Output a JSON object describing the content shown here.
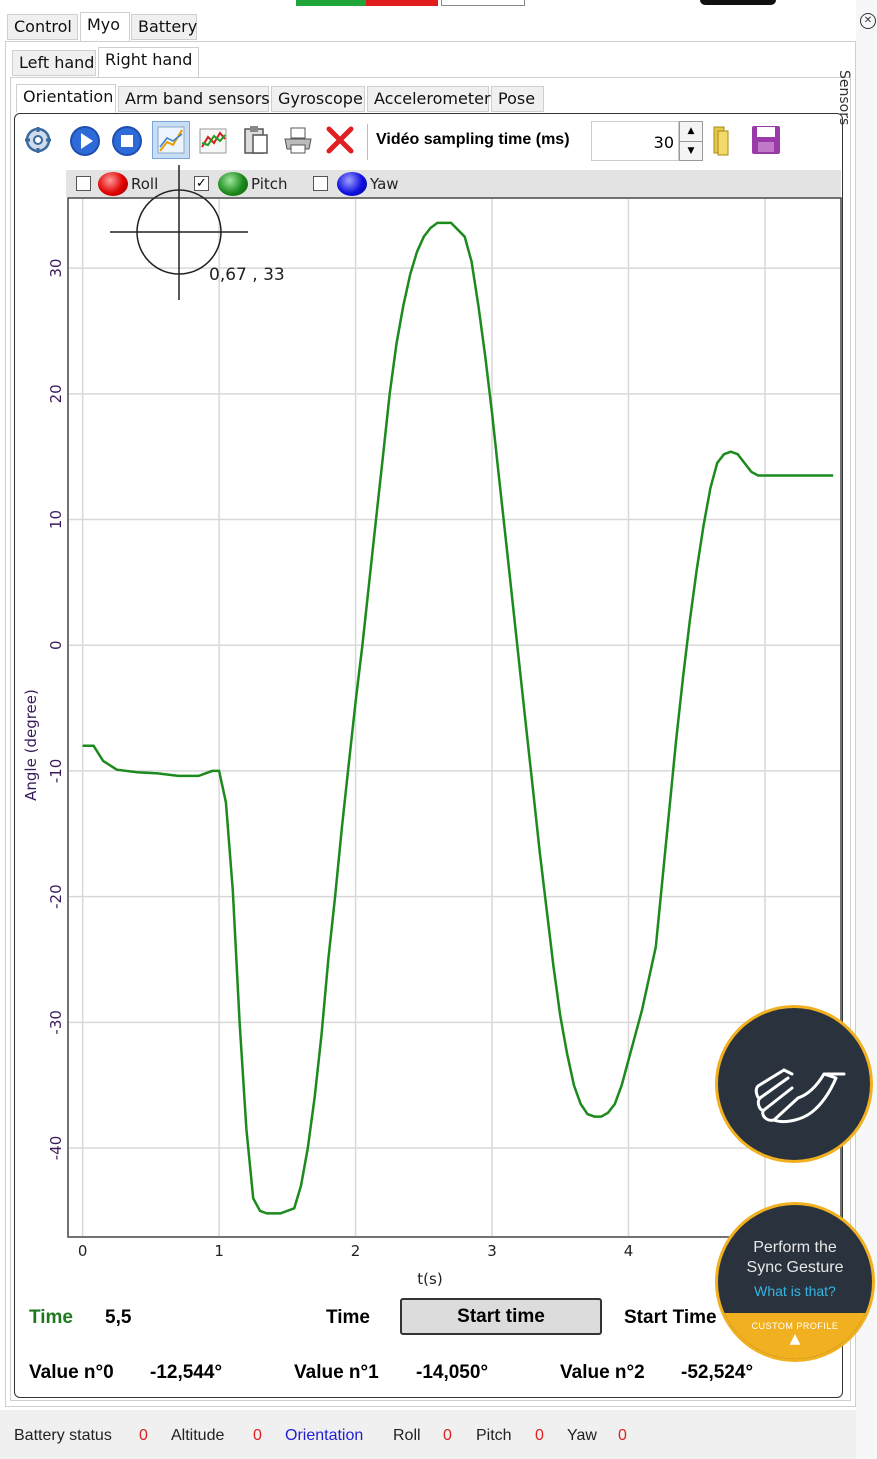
{
  "tabs_top": [
    {
      "label": "Control",
      "selected": false
    },
    {
      "label": "Myo",
      "selected": true
    },
    {
      "label": "Battery",
      "selected": false
    }
  ],
  "tabs_hand": [
    {
      "label": "Left hand",
      "selected": false
    },
    {
      "label": "Right hand",
      "selected": true
    }
  ],
  "tabs_sensor": [
    {
      "label": "Orientation",
      "selected": true
    },
    {
      "label": "Arm band sensors",
      "selected": false
    },
    {
      "label": "Gyroscope",
      "selected": false
    },
    {
      "label": "Accelerometer",
      "selected": false
    },
    {
      "label": "Pose",
      "selected": false
    }
  ],
  "toolbar": {
    "icons": [
      "settings-icon",
      "play-icon",
      "stop-icon",
      "chart-zoom-icon",
      "chart-line-icon",
      "clipboard-icon",
      "print-icon",
      "delete-icon"
    ],
    "sampling_label": "Vidéo sampling time (ms)",
    "sampling_value": "30"
  },
  "legend": [
    {
      "label": "Roll",
      "checked": false,
      "color": "#e00000"
    },
    {
      "label": "Pitch",
      "checked": true,
      "color": "#1c8a1c"
    },
    {
      "label": "Yaw",
      "checked": false,
      "color": "#1010e0"
    }
  ],
  "cursor_readout": "0,67 , 33",
  "chart_data": {
    "type": "line",
    "title": "",
    "xlabel": "t(s)",
    "ylabel": "Angle (degree)",
    "xlim": [
      -0.1,
      5.55
    ],
    "ylim": [
      -47,
      35.5
    ],
    "xticks": [
      0,
      1,
      2,
      3,
      4,
      5
    ],
    "yticks": [
      -40,
      -30,
      -20,
      -10,
      0,
      10,
      20,
      30
    ],
    "grid": true,
    "series": [
      {
        "name": "Pitch",
        "color": "#1c8a1c",
        "x": [
          0,
          0.08,
          0.15,
          0.25,
          0.4,
          0.55,
          0.7,
          0.85,
          0.95,
          1.0,
          1.05,
          1.1,
          1.15,
          1.2,
          1.25,
          1.3,
          1.35,
          1.45,
          1.55,
          1.6,
          1.65,
          1.7,
          1.75,
          1.8,
          1.85,
          1.9,
          1.95,
          2.0,
          2.05,
          2.1,
          2.15,
          2.2,
          2.25,
          2.3,
          2.35,
          2.4,
          2.45,
          2.5,
          2.55,
          2.6,
          2.7,
          2.8,
          2.85,
          2.9,
          2.95,
          3.0,
          3.05,
          3.1,
          3.15,
          3.2,
          3.25,
          3.3,
          3.35,
          3.4,
          3.45,
          3.5,
          3.55,
          3.6,
          3.65,
          3.7,
          3.75,
          3.8,
          3.85,
          3.9,
          3.95,
          4.0,
          4.1,
          4.2,
          4.25,
          4.3,
          4.35,
          4.4,
          4.45,
          4.5,
          4.55,
          4.6,
          4.65,
          4.7,
          4.75,
          4.8,
          4.85,
          4.9,
          4.95,
          5.0,
          5.05,
          5.1,
          5.15,
          5.2,
          5.25,
          5.3,
          5.35,
          5.4,
          5.45,
          5.5
        ],
        "values": [
          -8,
          -8,
          -9.2,
          -9.9,
          -10.1,
          -10.2,
          -10.4,
          -10.4,
          -10,
          -10,
          -12.5,
          -19.5,
          -30,
          -38.5,
          -44,
          -45,
          -45.2,
          -45.2,
          -44.8,
          -43,
          -40,
          -36,
          -31,
          -25,
          -20,
          -14.5,
          -9.5,
          -4.5,
          0,
          5,
          10,
          15,
          20,
          24,
          27,
          29.5,
          31.3,
          32.5,
          33.2,
          33.6,
          33.6,
          32.5,
          30.5,
          27,
          23,
          18.5,
          13.5,
          8.5,
          3.5,
          -1.5,
          -6.5,
          -11.5,
          -16.5,
          -21,
          -25.5,
          -29.5,
          -32.5,
          -35,
          -36.5,
          -37.3,
          -37.5,
          -37.5,
          -37.2,
          -36.5,
          -35,
          -33,
          -29,
          -24,
          -18.5,
          -13,
          -7.5,
          -2.5,
          2,
          6,
          9.5,
          12.5,
          14.5,
          15.2,
          15.4,
          15.2,
          14.5,
          13.8,
          13.5,
          13.5,
          13.5,
          13.5,
          13.5,
          13.5,
          13.5,
          13.5,
          13.5,
          13.5,
          13.5,
          13.5
        ]
      }
    ]
  },
  "bottom": {
    "time_label": "Time",
    "time_value": "5,5",
    "time2_label": "Time",
    "start_button": "Start time",
    "start_time_label": "Start Time",
    "value0_label": "Value n°0",
    "value0": "-12,544°",
    "value1_label": "Value n°1",
    "value1": "-14,050°",
    "value2_label": "Value n°2",
    "value2": "-52,524°"
  },
  "status_bar": {
    "items": [
      {
        "label": "Battery status",
        "value": "0"
      },
      {
        "label": "Altitude",
        "value": "0"
      },
      {
        "label": "Orientation",
        "value": ""
      },
      {
        "label": "Roll",
        "value": "0"
      },
      {
        "label": "Pitch",
        "value": "0"
      },
      {
        "label": "Yaw",
        "value": "0"
      }
    ]
  },
  "overlay": {
    "sync_line1": "Perform the",
    "sync_line2": "Sync Gesture",
    "what_link": "What is that?",
    "badge": "CUSTOM PROFILE",
    "side_label": "Sensors"
  }
}
